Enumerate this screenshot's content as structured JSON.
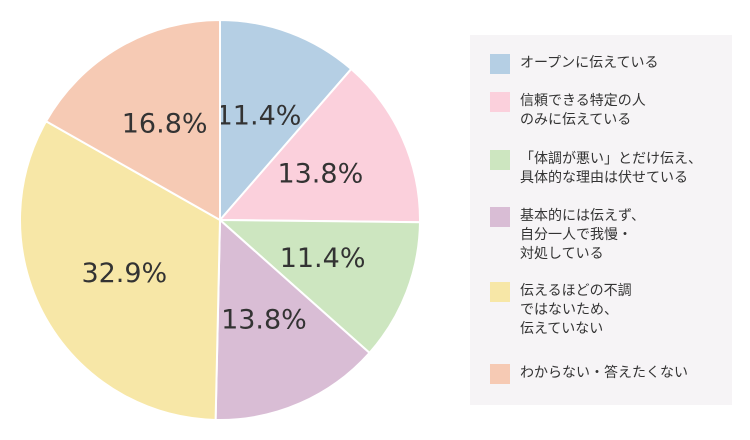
{
  "chart_data": {
    "type": "pie",
    "categories": [
      "オープンに伝えている",
      "信頼できる特定の人\nのみに伝えている",
      "「体調が悪い」とだけ伝え、\n具体的な理由は伏せている",
      "基本的には伝えず、\n自分一人で我慢・\n対処している",
      "伝えるほどの不調\nではないため、\n伝えていない",
      "わからない・答えたくない"
    ],
    "values": [
      11.4,
      13.8,
      11.4,
      13.8,
      32.9,
      16.8
    ],
    "value_labels": [
      "11.4%",
      "13.8%",
      "11.4%",
      "13.8%",
      "32.9%",
      "16.8%"
    ],
    "colors": [
      "#b5cfe4",
      "#fbd0dc",
      "#cde6c0",
      "#d9bdd5",
      "#f7e7a7",
      "#f6cab4"
    ]
  }
}
